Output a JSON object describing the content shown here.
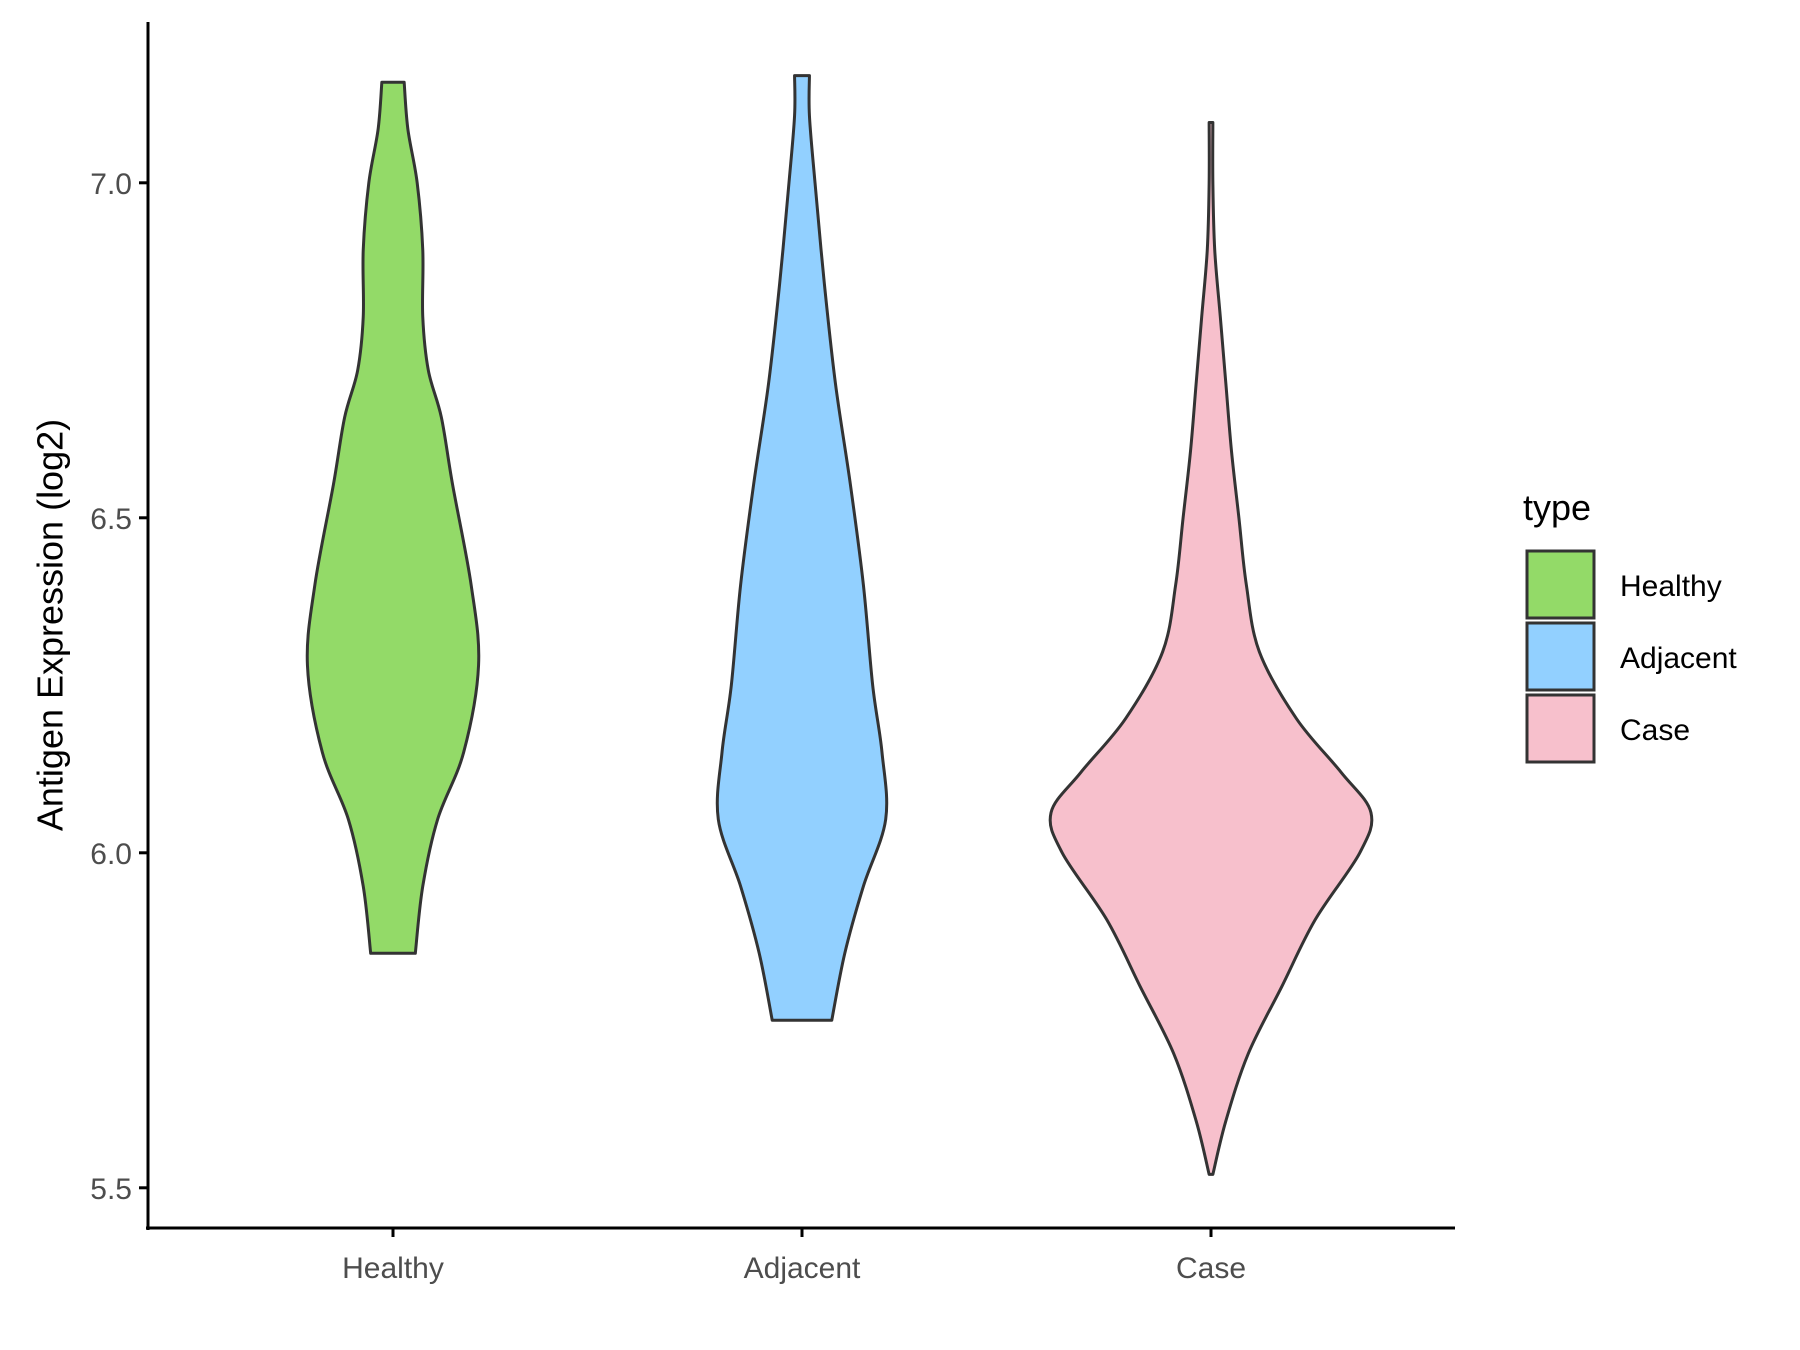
{
  "chart_data": {
    "type": "violin",
    "ylabel": "Antigen Expression (log2)",
    "xlabel": "",
    "ylim": [
      5.44,
      7.24
    ],
    "y_ticks": [
      5.5,
      6.0,
      6.5,
      7.0
    ],
    "y_tick_labels": [
      "5.5",
      "6.0",
      "6.5",
      "7.0"
    ],
    "categories": [
      "Healthy",
      "Adjacent",
      "Case"
    ],
    "grid": false,
    "legend": {
      "title": "type",
      "position": "right",
      "entries": [
        "Healthy",
        "Adjacent",
        "Case"
      ]
    },
    "series": [
      {
        "name": "Healthy",
        "color": "#93DA68",
        "min": 5.85,
        "max": 7.15,
        "profile": [
          [
            5.85,
            0.12
          ],
          [
            5.95,
            0.16
          ],
          [
            6.05,
            0.24
          ],
          [
            6.15,
            0.38
          ],
          [
            6.28,
            0.46
          ],
          [
            6.4,
            0.42
          ],
          [
            6.55,
            0.32
          ],
          [
            6.65,
            0.26
          ],
          [
            6.72,
            0.19
          ],
          [
            6.8,
            0.16
          ],
          [
            6.9,
            0.16
          ],
          [
            7.0,
            0.13
          ],
          [
            7.08,
            0.08
          ],
          [
            7.15,
            0.06
          ]
        ]
      },
      {
        "name": "Adjacent",
        "color": "#92D0FF",
        "min": 5.75,
        "max": 7.16,
        "profile": [
          [
            5.75,
            0.16
          ],
          [
            5.85,
            0.23
          ],
          [
            5.95,
            0.33
          ],
          [
            6.05,
            0.45
          ],
          [
            6.15,
            0.43
          ],
          [
            6.25,
            0.38
          ],
          [
            6.4,
            0.33
          ],
          [
            6.55,
            0.26
          ],
          [
            6.7,
            0.18
          ],
          [
            6.85,
            0.12
          ],
          [
            7.0,
            0.07
          ],
          [
            7.1,
            0.04
          ],
          [
            7.16,
            0.04
          ]
        ]
      },
      {
        "name": "Case",
        "color": "#F7C0CC",
        "min": 5.52,
        "max": 7.09,
        "profile": [
          [
            5.52,
            0.01
          ],
          [
            5.6,
            0.08
          ],
          [
            5.7,
            0.2
          ],
          [
            5.8,
            0.38
          ],
          [
            5.9,
            0.56
          ],
          [
            6.0,
            0.8
          ],
          [
            6.06,
            0.86
          ],
          [
            6.12,
            0.7
          ],
          [
            6.2,
            0.46
          ],
          [
            6.3,
            0.26
          ],
          [
            6.4,
            0.19
          ],
          [
            6.5,
            0.15
          ],
          [
            6.6,
            0.11
          ],
          [
            6.7,
            0.08
          ],
          [
            6.8,
            0.05
          ],
          [
            6.9,
            0.02
          ],
          [
            7.0,
            0.01
          ],
          [
            7.09,
            0.01
          ]
        ]
      }
    ]
  }
}
